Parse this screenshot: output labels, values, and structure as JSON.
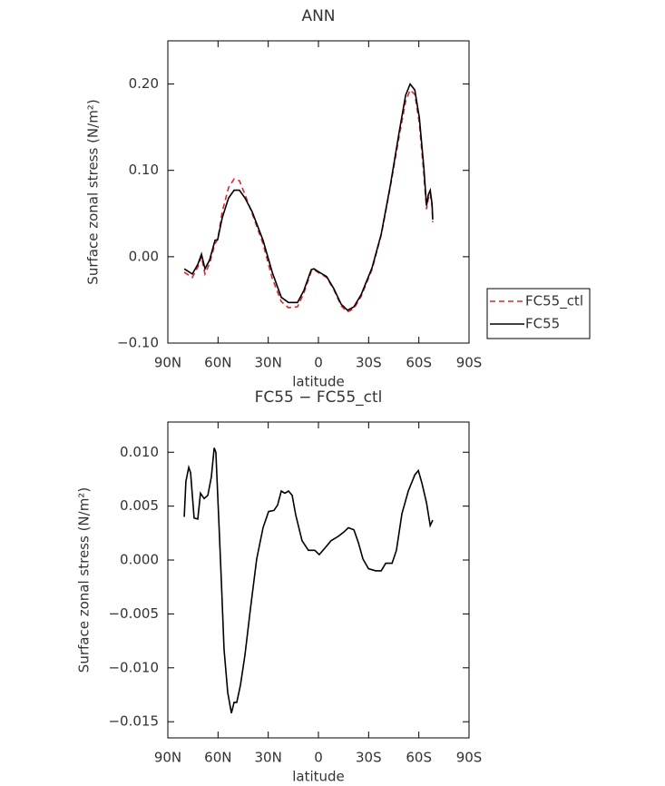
{
  "chart_data": [
    {
      "type": "line",
      "title": "ANN",
      "xlabel": "latitude",
      "ylabel": "Surface zonal stress (N/m²)",
      "x": [
        80.2,
        75.4,
        72.1,
        69.9,
        67.8,
        65.1,
        61.8,
        60.2,
        57.5,
        53.7,
        50.4,
        47.2,
        43.9,
        39.6,
        33.1,
        27.6,
        22.2,
        17.9,
        12.5,
        8.7,
        4.3,
        2.7,
        -0.5,
        -4.9,
        -9.2,
        -13.6,
        -17.4,
        -21.2,
        -25.5,
        -32.0,
        -37.5,
        -42.9,
        -48.3,
        -52.1,
        -54.8,
        -57.6,
        -60.3,
        -63.0,
        -64.6,
        -65.7,
        -66.8,
        -67.9,
        -68.3
      ],
      "series": [
        {
          "name": "FC55_ctl",
          "color": "#e8202a",
          "linestyle": "dashed",
          "values": [
            -0.018,
            -0.024,
            -0.012,
            0.0,
            -0.02,
            -0.008,
            0.015,
            0.02,
            0.052,
            0.08,
            0.09,
            0.088,
            0.072,
            0.05,
            0.015,
            -0.025,
            -0.052,
            -0.059,
            -0.058,
            -0.042,
            -0.017,
            -0.015,
            -0.019,
            -0.024,
            -0.038,
            -0.057,
            -0.064,
            -0.06,
            -0.046,
            -0.015,
            0.025,
            0.08,
            0.14,
            0.18,
            0.193,
            0.188,
            0.155,
            0.095,
            0.055,
            0.068,
            0.073,
            0.058,
            0.04
          ]
        },
        {
          "name": "FC55",
          "color": "#000000",
          "linestyle": "solid",
          "values": [
            -0.014,
            -0.02,
            -0.009,
            0.003,
            -0.014,
            -0.004,
            0.019,
            0.02,
            0.045,
            0.068,
            0.077,
            0.077,
            0.068,
            0.052,
            0.019,
            -0.018,
            -0.047,
            -0.053,
            -0.053,
            -0.039,
            -0.015,
            -0.014,
            -0.018,
            -0.023,
            -0.037,
            -0.055,
            -0.062,
            -0.058,
            -0.044,
            -0.013,
            0.026,
            0.082,
            0.145,
            0.187,
            0.2,
            0.193,
            0.161,
            0.103,
            0.059,
            0.072,
            0.077,
            0.061,
            0.043
          ]
        }
      ],
      "xlim": [
        90,
        -90
      ],
      "xticks": [
        {
          "value": 90,
          "label": "90N"
        },
        {
          "value": 60,
          "label": "60N"
        },
        {
          "value": 30,
          "label": "30N"
        },
        0,
        {
          "value": -30,
          "label": "30S"
        },
        {
          "value": -60,
          "label": "60S"
        },
        {
          "value": -90,
          "label": "90S"
        }
      ],
      "ylim": [
        -0.1,
        0.25
      ],
      "yticks": [
        {
          "value": -0.1,
          "label": "−0.10"
        },
        {
          "value": 0,
          "label": "0.00"
        },
        {
          "value": 0.1,
          "label": "0.10"
        },
        {
          "value": 0.2,
          "label": "0.20"
        }
      ],
      "legend": "outside right"
    },
    {
      "type": "line",
      "title": "FC55 − FC55_ctl",
      "xlabel": "latitude",
      "ylabel": "Surface zonal stress (N/m²)",
      "x": [
        80.2,
        79.2,
        77.5,
        76.4,
        74.3,
        72.1,
        70.5,
        68.3,
        66.1,
        64.0,
        62.3,
        61.3,
        59.6,
        58.0,
        56.4,
        54.2,
        52.0,
        50.4,
        48.8,
        46.6,
        43.9,
        40.7,
        36.9,
        33.1,
        29.8,
        26.6,
        24.4,
        22.2,
        20.1,
        17.9,
        15.7,
        13.6,
        9.8,
        6.0,
        2.2,
        -0.5,
        -3.8,
        -7.6,
        -11.9,
        -15.2,
        -17.9,
        -21.2,
        -23.9,
        -26.6,
        -29.9,
        -34.2,
        -37.5,
        -40.2,
        -44.0,
        -46.6,
        -49.9,
        -53.7,
        -57.6,
        -59.7,
        -61.9,
        -64.6,
        -66.8,
        -68.3
      ],
      "series": [
        {
          "color": "#000000",
          "linestyle": "solid",
          "values": [
            0.004,
            0.0073,
            0.0086,
            0.0081,
            0.0039,
            0.0038,
            0.0062,
            0.0057,
            0.006,
            0.0077,
            0.0104,
            0.01,
            0.0039,
            -0.002,
            -0.0083,
            -0.0123,
            -0.0142,
            -0.0132,
            -0.0132,
            -0.0116,
            -0.0088,
            -0.0046,
            0.0001,
            0.003,
            0.0045,
            0.0046,
            0.0051,
            0.0064,
            0.0062,
            0.0064,
            0.006,
            0.0042,
            0.0018,
            0.0009,
            0.0009,
            0.0005,
            0.0011,
            0.0018,
            0.0022,
            0.0026,
            0.003,
            0.0028,
            0.0016,
            0.0001,
            -0.0008,
            -0.001,
            -0.001,
            -0.0003,
            -0.0003,
            0.0009,
            0.0043,
            0.0064,
            0.0079,
            0.0083,
            0.0071,
            0.0053,
            0.0032,
            0.0037
          ]
        }
      ],
      "xlim": [
        90,
        -90
      ],
      "xticks": [
        {
          "value": 90,
          "label": "90N"
        },
        {
          "value": 60,
          "label": "60N"
        },
        {
          "value": 30,
          "label": "30N"
        },
        0,
        {
          "value": -30,
          "label": "30S"
        },
        {
          "value": -60,
          "label": "60S"
        },
        {
          "value": -90,
          "label": "90S"
        }
      ],
      "ylim": [
        -0.0165,
        0.0128
      ],
      "yticks": [
        {
          "value": -0.015,
          "label": "−0.015"
        },
        {
          "value": -0.01,
          "label": "−0.010"
        },
        {
          "value": -0.005,
          "label": "−0.005"
        },
        {
          "value": 0,
          "label": "0.000"
        },
        {
          "value": 0.005,
          "label": "0.005"
        },
        {
          "value": 0.01,
          "label": "0.010"
        }
      ]
    }
  ]
}
